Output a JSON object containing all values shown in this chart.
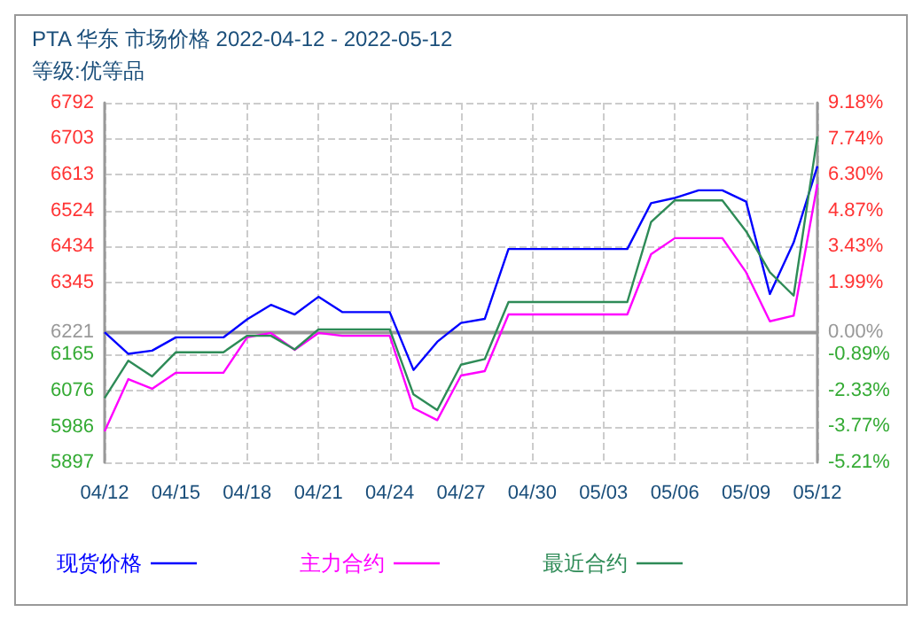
{
  "chart_data": {
    "type": "line",
    "title": "PTA 华东 市场价格 2022-04-12 - 2022-05-12",
    "subtitle": "等级:优等品",
    "categories": [
      "04/12",
      null,
      null,
      "04/15",
      null,
      null,
      "04/18",
      null,
      null,
      "04/21",
      null,
      null,
      "04/24",
      null,
      null,
      "04/27",
      null,
      null,
      "04/30",
      null,
      null,
      "05/03",
      null,
      null,
      "05/06",
      null,
      null,
      "05/09",
      null,
      null,
      "05/12"
    ],
    "series": [
      {
        "name": "现货价格",
        "color": "#0000ff",
        "values": [
          6221,
          6167,
          6175,
          6208,
          6208,
          6208,
          6253,
          6289,
          6265,
          6309,
          6271,
          6271,
          6271,
          6127,
          6197,
          6244,
          6254,
          6428,
          6428,
          6428,
          6428,
          6428,
          6428,
          6542,
          6555,
          6574,
          6574,
          6546,
          6316,
          6444,
          6634
        ]
      },
      {
        "name": "主力合约",
        "color": "#ff00ff",
        "values": [
          5974,
          6104,
          6080,
          6120,
          6120,
          6120,
          6208,
          6219,
          6177,
          6219,
          6212,
          6212,
          6212,
          6032,
          6002,
          6113,
          6124,
          6265,
          6265,
          6265,
          6265,
          6265,
          6265,
          6415,
          6455,
          6455,
          6455,
          6370,
          6248,
          6262,
          6589
        ]
      },
      {
        "name": "最近合约",
        "color": "#2e8b57",
        "values": [
          6057,
          6150,
          6111,
          6171,
          6171,
          6171,
          6212,
          6212,
          6178,
          6228,
          6228,
          6228,
          6228,
          6066,
          6027,
          6140,
          6154,
          6296,
          6296,
          6296,
          6296,
          6296,
          6296,
          6495,
          6549,
          6549,
          6549,
          6472,
          6370,
          6312,
          6708
        ]
      }
    ],
    "ylim": [
      5897,
      6792
    ],
    "yticks": [
      5897,
      5986,
      6076,
      6165,
      6221,
      6345,
      6434,
      6524,
      6613,
      6703,
      6792
    ],
    "y2lim": [
      -5.21,
      9.18
    ],
    "y2ticks": [
      {
        "value": -5.21,
        "label": "-5.21%"
      },
      {
        "value": -3.77,
        "label": "-3.77%"
      },
      {
        "value": -2.33,
        "label": "-2.33%"
      },
      {
        "value": -0.89,
        "label": "-0.89%"
      },
      {
        "value": 0,
        "label": "0.00%"
      },
      {
        "value": 1.99,
        "label": "1.99%"
      },
      {
        "value": 3.43,
        "label": "3.43%"
      },
      {
        "value": 4.87,
        "label": "4.87%"
      },
      {
        "value": 6.3,
        "label": "6.30%"
      },
      {
        "value": 7.74,
        "label": "7.74%"
      },
      {
        "value": 9.18,
        "label": "9.18%"
      }
    ],
    "ref_lines": [
      {
        "axis": "y",
        "value": 6221,
        "color": "#999999"
      }
    ],
    "grid": true,
    "legend": "bottom left",
    "marker": "none",
    "line_style": "solid"
  }
}
